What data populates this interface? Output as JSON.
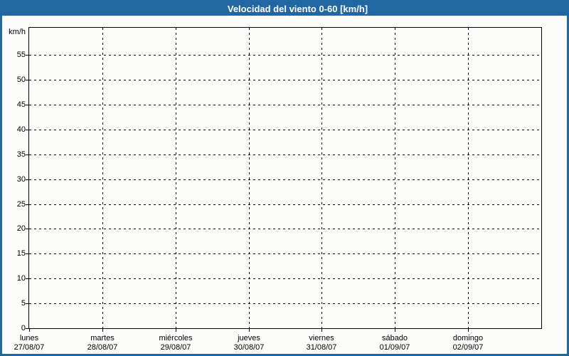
{
  "colors": {
    "titlebar_bg": "#2168a3",
    "window_border": "#2168a3",
    "background": "#fcfdfb",
    "title_text": "#ffffff",
    "axis": "#000000"
  },
  "chart_data": {
    "type": "line",
    "title": "Velocidad del viento 0-60 [km/h]",
    "ylabel": "km/h",
    "xlabel": "",
    "y_ticks": [
      0,
      5,
      10,
      15,
      20,
      25,
      30,
      35,
      40,
      45,
      50,
      55
    ],
    "ylim": [
      0,
      60.5
    ],
    "grid": "dashed",
    "legend": "none",
    "categories": [
      {
        "day": "lunes",
        "date": "27/08/07"
      },
      {
        "day": "martes",
        "date": "28/08/07"
      },
      {
        "day": "miércoles",
        "date": "29/08/07"
      },
      {
        "day": "jueves",
        "date": "30/08/07"
      },
      {
        "day": "viernes",
        "date": "31/08/07"
      },
      {
        "day": "sábado",
        "date": "01/09/07"
      },
      {
        "day": "domingo",
        "date": "02/09/07"
      }
    ],
    "series": []
  }
}
